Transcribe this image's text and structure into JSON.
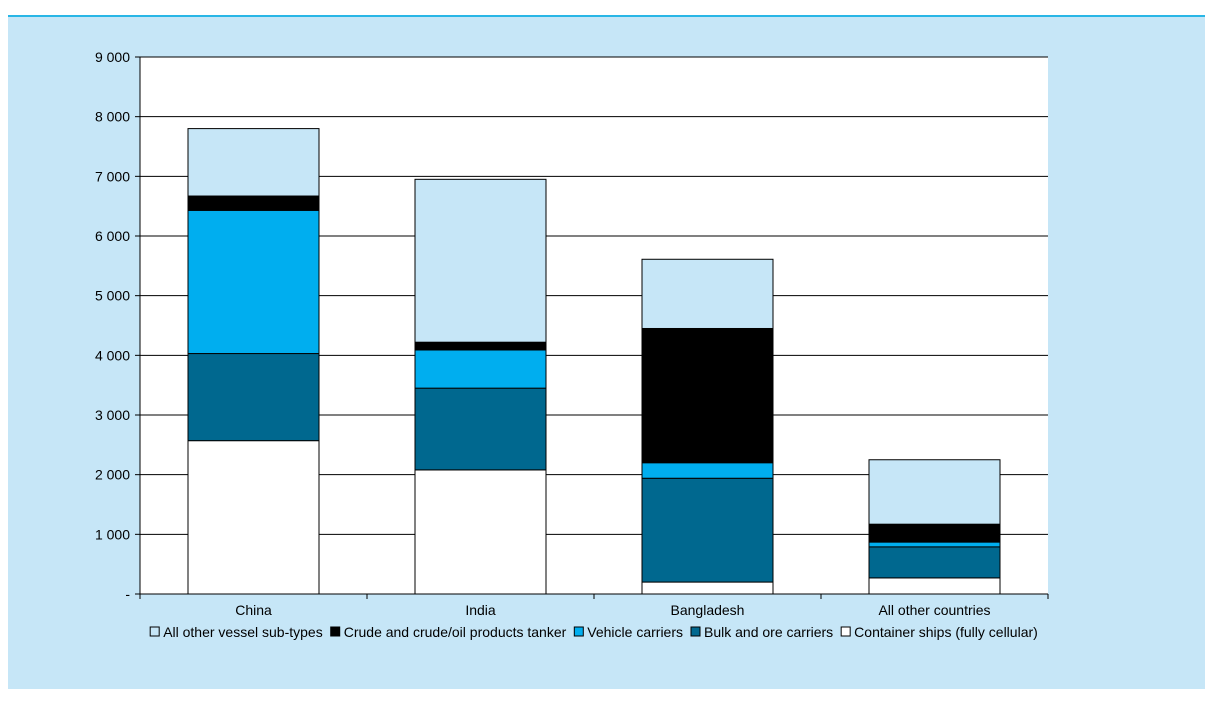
{
  "colors": {
    "panel_background": "#c6e6f7",
    "plot_background": "#ffffff",
    "frame_rule": "#29b6e6",
    "gridline": "#000000",
    "bar_stroke": "#000000"
  },
  "chart_data": {
    "type": "bar",
    "stacked": true,
    "title": "",
    "xlabel": "",
    "ylabel": "",
    "ylim": [
      0,
      9000
    ],
    "y_ticks": [
      0,
      1000,
      2000,
      3000,
      4000,
      5000,
      6000,
      7000,
      8000,
      9000
    ],
    "y_tick_labels": [
      "-",
      "1 000",
      "2 000",
      "3 000",
      "4 000",
      "5 000",
      "6 000",
      "7 000",
      "8 000",
      "9 000"
    ],
    "grid": true,
    "legend_position": "bottom",
    "categories": [
      "China",
      "India",
      "Bangladesh",
      "All other countries"
    ],
    "series": [
      {
        "name": "Container ships (fully cellular)",
        "color": "#ffffff",
        "values": [
          2570,
          2080,
          200,
          270
        ]
      },
      {
        "name": "Bulk and ore carriers",
        "color": "#00688f",
        "values": [
          1460,
          1370,
          1740,
          520
        ]
      },
      {
        "name": "Vehicle carriers",
        "color": "#00aeef",
        "values": [
          2400,
          640,
          260,
          80
        ]
      },
      {
        "name": "Crude and crude/oil products tanker",
        "color": "#000000",
        "values": [
          240,
          130,
          2250,
          300
        ]
      },
      {
        "name": "All other vessel sub-types",
        "color": "#c6e6f7",
        "values": [
          1130,
          2730,
          1160,
          1080
        ]
      }
    ],
    "legend_order": [
      "All other vessel sub-types",
      "Crude and crude/oil products tanker",
      "Vehicle carriers",
      "Bulk and ore carriers",
      "Container ships (fully cellular)"
    ]
  }
}
